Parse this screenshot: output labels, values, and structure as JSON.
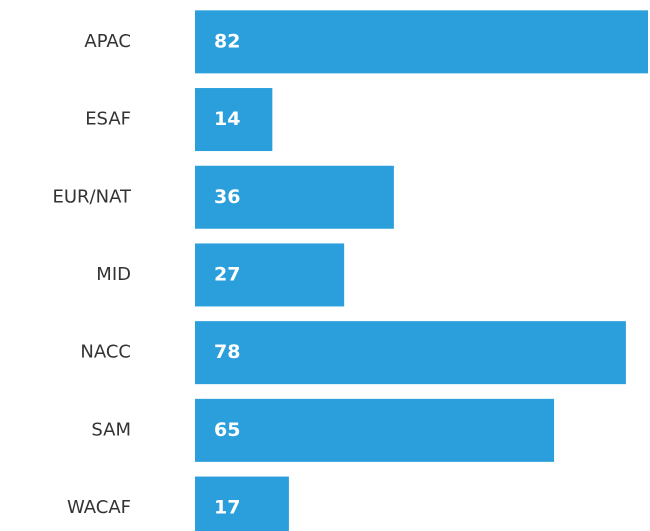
{
  "chart_data": {
    "type": "bar",
    "orientation": "horizontal",
    "categories": [
      "APAC",
      "ESAF",
      "EUR/NAT",
      "MID",
      "NACC",
      "SAM",
      "WACAF"
    ],
    "values": [
      82,
      14,
      36,
      27,
      78,
      65,
      17
    ],
    "color": "#2a9fdc"
  }
}
